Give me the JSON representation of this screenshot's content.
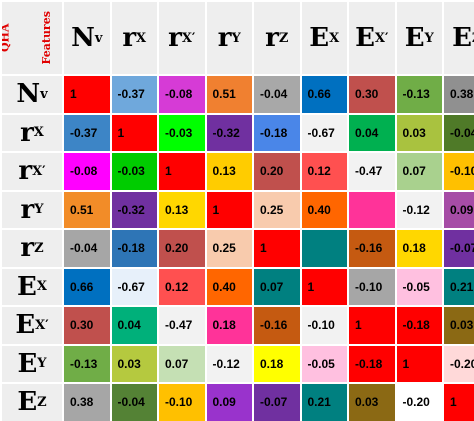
{
  "chart_data": {
    "type": "heatmap",
    "corner_label_lines": [
      "QHA",
      "Features"
    ],
    "col_labels": [
      {
        "main": "N",
        "sub": "v"
      },
      {
        "main": "r",
        "sub": "X"
      },
      {
        "main": "r",
        "sub": "X′"
      },
      {
        "main": "r",
        "sub": "Y"
      },
      {
        "main": "r",
        "sub": "Z"
      },
      {
        "main": "E",
        "sub": "X"
      },
      {
        "main": "E",
        "sub": "X′"
      },
      {
        "main": "E",
        "sub": "Y"
      },
      {
        "main": "E",
        "sub": "Z"
      }
    ],
    "row_labels": [
      {
        "main": "N",
        "sub": "v"
      },
      {
        "main": "r",
        "sub": "X"
      },
      {
        "main": "r",
        "sub": "X′"
      },
      {
        "main": "r",
        "sub": "Y"
      },
      {
        "main": "r",
        "sub": "Z"
      },
      {
        "main": "E",
        "sub": "X"
      },
      {
        "main": "E",
        "sub": "X′"
      },
      {
        "main": "E",
        "sub": "Y"
      },
      {
        "main": "E",
        "sub": "Z"
      }
    ],
    "cells": [
      [
        {
          "v": "1",
          "c": "#ff0000"
        },
        {
          "v": "-0.37",
          "c": "#6fa8dc"
        },
        {
          "v": "-0.08",
          "c": "#d63bd6"
        },
        {
          "v": "0.51",
          "c": "#f08030"
        },
        {
          "v": "-0.04",
          "c": "#a8a8a8"
        },
        {
          "v": "0.66",
          "c": "#0070c0"
        },
        {
          "v": "0.30",
          "c": "#c0504d"
        },
        {
          "v": "-0.13",
          "c": "#70ad47"
        },
        {
          "v": "0.38",
          "c": "#909090"
        }
      ],
      [
        {
          "v": "-0.37",
          "c": "#3d85c6"
        },
        {
          "v": "1",
          "c": "#ff0000"
        },
        {
          "v": "-0.03",
          "c": "#00ff00"
        },
        {
          "v": "-0.32",
          "c": "#7030a0"
        },
        {
          "v": "-0.18",
          "c": "#4a86e8"
        },
        {
          "v": "-0.67",
          "c": "#f2f2f2"
        },
        {
          "v": "0.04",
          "c": "#00b050"
        },
        {
          "v": "0.03",
          "c": "#a9c23f"
        },
        {
          "v": "-0.04",
          "c": "#4f7a28"
        }
      ],
      [
        {
          "v": "-0.08",
          "c": "#ff00ff"
        },
        {
          "v": "-0.03",
          "c": "#00cc00"
        },
        {
          "v": "1",
          "c": "#ff0000"
        },
        {
          "v": "0.13",
          "c": "#ffcc00"
        },
        {
          "v": "0.20",
          "c": "#c0504d"
        },
        {
          "v": "0.12",
          "c": "#ff5050"
        },
        {
          "v": "-0.47",
          "c": "#f2f2f2"
        },
        {
          "v": "0.07",
          "c": "#a9d18e"
        },
        {
          "v": "-0.10",
          "c": "#ffc000"
        }
      ],
      [
        {
          "v": "0.51",
          "c": "#f28c28"
        },
        {
          "v": "-0.32",
          "c": "#7030a0"
        },
        {
          "v": "0.13",
          "c": "#ffd700"
        },
        {
          "v": "1",
          "c": "#ff0000"
        },
        {
          "v": "0.25",
          "c": "#f8cbad"
        },
        {
          "v": "0.40",
          "c": "#ff6600"
        },
        {
          "v": "",
          "c": "#ff3399"
        },
        {
          "v": "-0.12",
          "c": "#f2f2f2"
        },
        {
          "v": "0.09",
          "c": "#a64ca6"
        }
      ],
      [
        {
          "v": "-0.04",
          "c": "#a6a6a6"
        },
        {
          "v": "-0.18",
          "c": "#2e75b6"
        },
        {
          "v": "0.20",
          "c": "#c0504d"
        },
        {
          "v": "0.25",
          "c": "#f8cbad"
        },
        {
          "v": "1",
          "c": "#ff0000"
        },
        {
          "v": "",
          "c": "#008080"
        },
        {
          "v": "-0.16",
          "c": "#c55a11"
        },
        {
          "v": "0.18",
          "c": "#ffd700"
        },
        {
          "v": "-0.07",
          "c": "#7030a0"
        }
      ],
      [
        {
          "v": "0.66",
          "c": "#0070c0"
        },
        {
          "v": "-0.67",
          "c": "#e7f0fa"
        },
        {
          "v": "0.12",
          "c": "#ff5050"
        },
        {
          "v": "0.40",
          "c": "#ff6600"
        },
        {
          "v": "0.07",
          "c": "#008080"
        },
        {
          "v": "1",
          "c": "#ff0000"
        },
        {
          "v": "-0.10",
          "c": "#a6a6a6"
        },
        {
          "v": "-0.05",
          "c": "#ffc0e0"
        },
        {
          "v": "0.21",
          "c": "#008080"
        }
      ],
      [
        {
          "v": "0.30",
          "c": "#c0504d"
        },
        {
          "v": "0.04",
          "c": "#00b07a"
        },
        {
          "v": "-0.47",
          "c": "#f2f2f2"
        },
        {
          "v": "0.18",
          "c": "#ff3399"
        },
        {
          "v": "-0.16",
          "c": "#c55a11"
        },
        {
          "v": "-0.10",
          "c": "#f2f2f2"
        },
        {
          "v": "1",
          "c": "#ff0000"
        },
        {
          "v": "-0.18",
          "c": "#ff0000"
        },
        {
          "v": "0.03",
          "c": "#8b6914"
        }
      ],
      [
        {
          "v": "-0.13",
          "c": "#70ad47"
        },
        {
          "v": "0.03",
          "c": "#b5c93f"
        },
        {
          "v": "0.07",
          "c": "#c5e0b4"
        },
        {
          "v": "-0.12",
          "c": "#f2f2f2"
        },
        {
          "v": "0.18",
          "c": "#ffff00"
        },
        {
          "v": "-0.05",
          "c": "#ffc0e0"
        },
        {
          "v": "-0.18",
          "c": "#ff0000"
        },
        {
          "v": "1",
          "c": "#ff0000"
        },
        {
          "v": "-0.20",
          "c": "#ffd9d9"
        }
      ],
      [
        {
          "v": "0.38",
          "c": "#a6a6a6"
        },
        {
          "v": "-0.04",
          "c": "#548235"
        },
        {
          "v": "-0.10",
          "c": "#ffc000"
        },
        {
          "v": "0.09",
          "c": "#9933cc"
        },
        {
          "v": "-0.07",
          "c": "#7030a0"
        },
        {
          "v": "0.21",
          "c": "#008080"
        },
        {
          "v": "0.03",
          "c": "#8b6914"
        },
        {
          "v": "-0.20",
          "c": "#ffffff"
        },
        {
          "v": "1",
          "c": "#ff0000"
        }
      ]
    ]
  }
}
